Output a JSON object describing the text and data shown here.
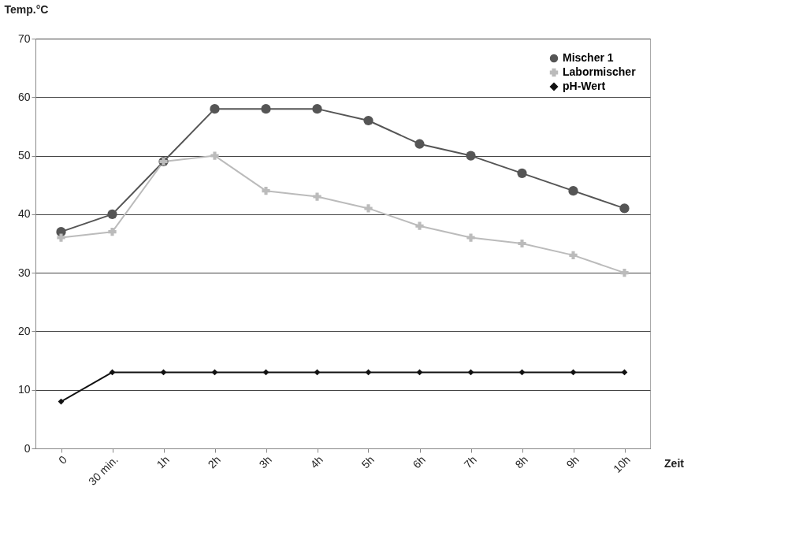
{
  "chart_data": {
    "type": "line",
    "xlabel": "Zeit",
    "ylabel": "Temp.°C",
    "categories": [
      "0",
      "30 min.",
      "1h",
      "2h",
      "3h",
      "4h",
      "5h",
      "6h",
      "7h",
      "8h",
      "9h",
      "10h"
    ],
    "series": [
      {
        "name": "Mischer 1",
        "color": "#555555",
        "marker": "circle",
        "values": [
          37,
          40,
          49,
          58,
          58,
          58,
          56,
          52,
          50,
          47,
          44,
          41
        ]
      },
      {
        "name": "Labormischer",
        "color": "#bbbbbb",
        "marker": "cross",
        "values": [
          36,
          37,
          49,
          50,
          44,
          43,
          41,
          38,
          36,
          35,
          33,
          30
        ]
      },
      {
        "name": "pH-Wert",
        "color": "#111111",
        "marker": "diamond",
        "values": [
          8,
          13,
          13,
          13,
          13,
          13,
          13,
          13,
          13,
          13,
          13,
          13
        ]
      }
    ],
    "ylim": [
      0,
      70
    ],
    "yticks": [
      0,
      10,
      20,
      30,
      40,
      50,
      60,
      70
    ],
    "grid": "y",
    "legend": "top right",
    "line_style": "solid"
  }
}
